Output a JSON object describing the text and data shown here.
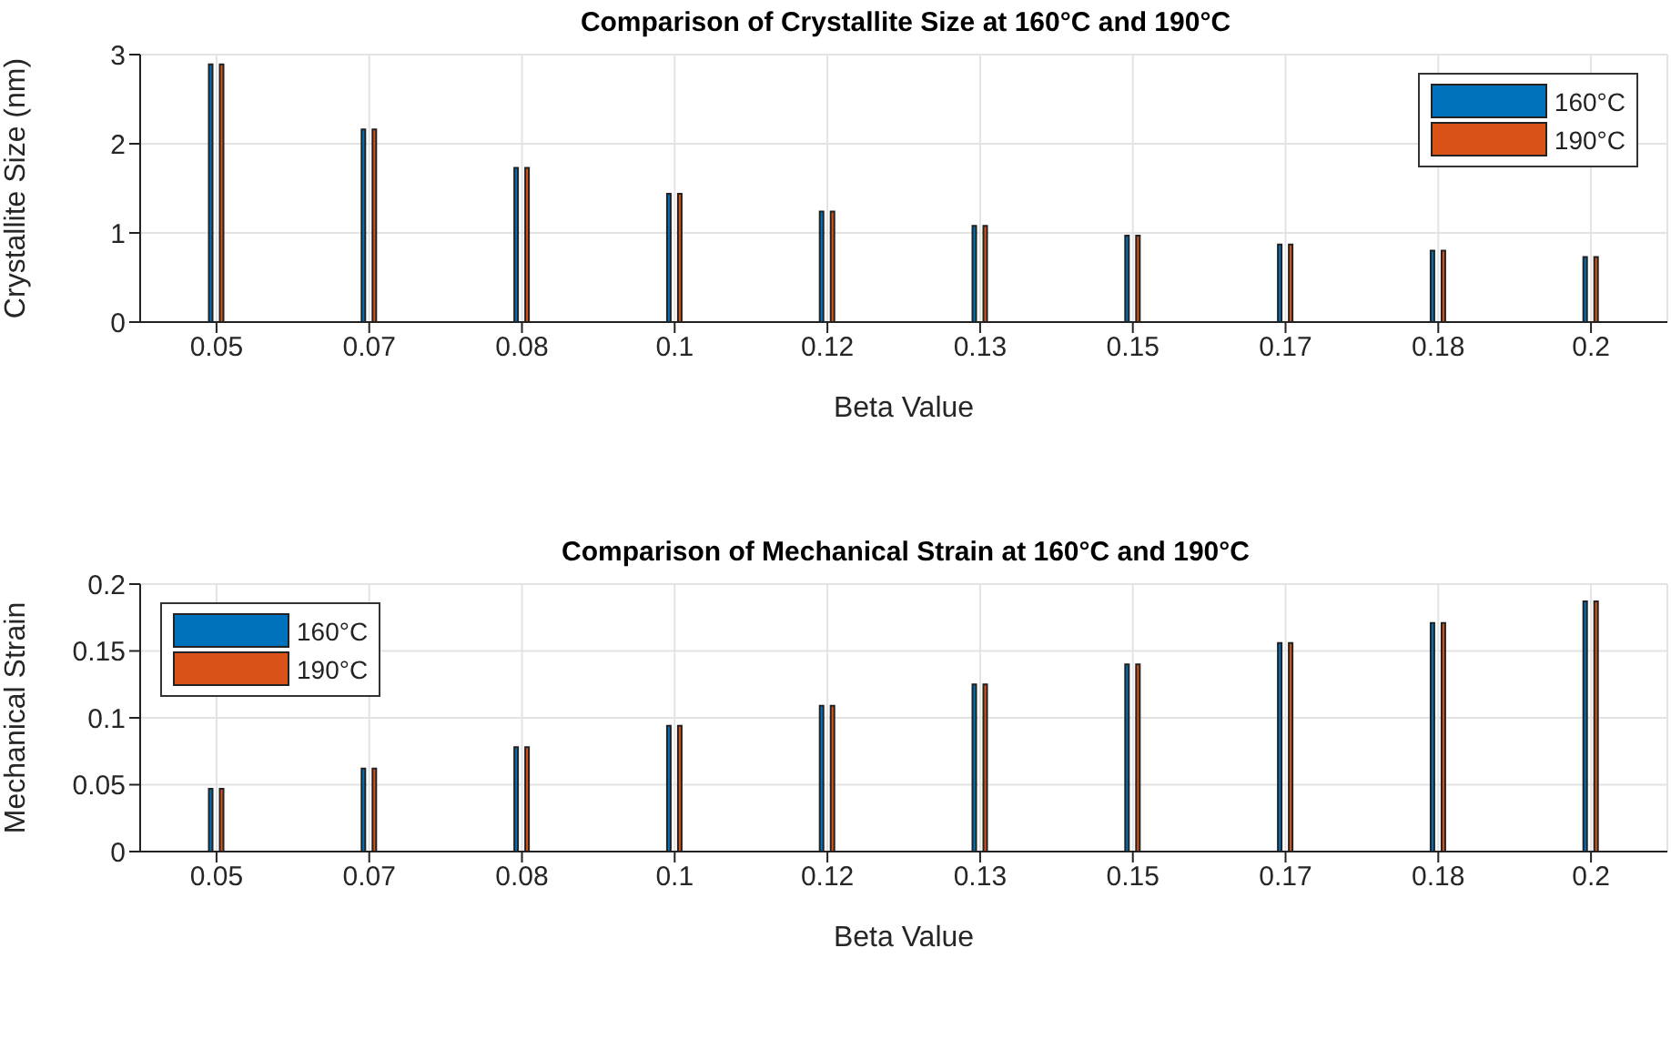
{
  "chart_data": [
    {
      "type": "bar",
      "title": "Comparison of Crystallite Size at 160°C and 190°C",
      "xlabel": "Beta Value",
      "ylabel": "Crystallite Size (nm)",
      "categories": [
        "0.05",
        "0.07",
        "0.08",
        "0.1",
        "0.12",
        "0.13",
        "0.15",
        "0.17",
        "0.18",
        "0.2"
      ],
      "series": [
        {
          "name": "160°C",
          "color": "#0072bd",
          "values": [
            2.89,
            2.16,
            1.73,
            1.44,
            1.24,
            1.08,
            0.97,
            0.87,
            0.8,
            0.73
          ]
        },
        {
          "name": "190°C",
          "color": "#d95319",
          "values": [
            2.89,
            2.16,
            1.73,
            1.44,
            1.24,
            1.08,
            0.97,
            0.87,
            0.8,
            0.73
          ]
        }
      ],
      "ylim": [
        0,
        3
      ],
      "yticks": [
        0,
        1,
        2,
        3
      ],
      "grid": true,
      "legend": "top right"
    },
    {
      "type": "bar",
      "title": "Comparison of Mechanical Strain at 160°C and 190°C",
      "xlabel": "Beta Value",
      "ylabel": "Mechanical Strain",
      "categories": [
        "0.05",
        "0.07",
        "0.08",
        "0.1",
        "0.12",
        "0.13",
        "0.15",
        "0.17",
        "0.18",
        "0.2"
      ],
      "series": [
        {
          "name": "160°C",
          "color": "#0072bd",
          "values": [
            0.047,
            0.062,
            0.078,
            0.094,
            0.109,
            0.125,
            0.14,
            0.156,
            0.171,
            0.187
          ]
        },
        {
          "name": "190°C",
          "color": "#d95319",
          "values": [
            0.047,
            0.062,
            0.078,
            0.094,
            0.109,
            0.125,
            0.14,
            0.156,
            0.171,
            0.187
          ]
        }
      ],
      "ylim": [
        0,
        0.2
      ],
      "yticks": [
        0,
        0.05,
        0.1,
        0.15,
        0.2
      ],
      "grid": true,
      "legend": "top left"
    }
  ]
}
